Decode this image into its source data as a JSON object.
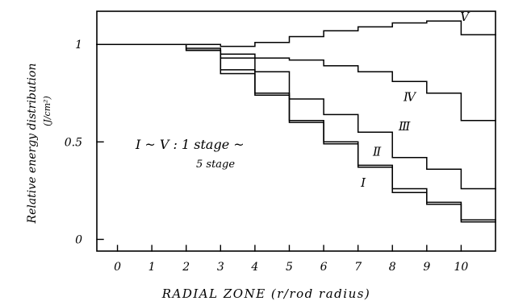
{
  "chart_data": {
    "type": "line",
    "step": true,
    "xlabel": "RADIAL ZONE (r/rod radius)",
    "ylabel": "Relative energy distribution",
    "ylabel_unit": "(J/cm²)",
    "x_ticks": [
      "0",
      "1",
      "2",
      "3",
      "4",
      "5",
      "6",
      "7",
      "8",
      "9",
      "10"
    ],
    "y_ticks": [
      {
        "value": 0,
        "label": "0"
      },
      {
        "value": 0.5,
        "label": "0.5"
      },
      {
        "value": 1,
        "label": "1"
      }
    ],
    "xlim": [
      -0.6,
      11
    ],
    "ylim": [
      -0.06,
      1.17
    ],
    "annotation": {
      "line1": "I ~ V : 1 stage ~",
      "line2": "5 stage"
    },
    "series": [
      {
        "name": "I",
        "x": [
          -0.6,
          2,
          3,
          4,
          5,
          6,
          7,
          8,
          9,
          10
        ],
        "y": [
          1.0,
          0.97,
          0.85,
          0.74,
          0.6,
          0.49,
          0.37,
          0.24,
          0.18,
          0.09
        ]
      },
      {
        "name": "II",
        "x": [
          -0.6,
          2,
          3,
          4,
          5,
          6,
          7,
          8,
          9,
          10
        ],
        "y": [
          1.0,
          0.97,
          0.87,
          0.75,
          0.61,
          0.5,
          0.38,
          0.26,
          0.19,
          0.1
        ]
      },
      {
        "name": "III",
        "x": [
          -0.6,
          2,
          3,
          4,
          5,
          6,
          7,
          8,
          9,
          10
        ],
        "y": [
          1.0,
          0.97,
          0.93,
          0.86,
          0.72,
          0.64,
          0.55,
          0.42,
          0.36,
          0.26
        ]
      },
      {
        "name": "IV",
        "x": [
          -0.6,
          2,
          3,
          4,
          5,
          6,
          7,
          8,
          9,
          10
        ],
        "y": [
          1.0,
          0.98,
          0.95,
          0.93,
          0.92,
          0.89,
          0.86,
          0.81,
          0.75,
          0.61
        ]
      },
      {
        "name": "V",
        "x": [
          -0.6,
          3,
          4,
          5,
          6,
          7,
          8,
          9,
          10
        ],
        "y": [
          1.0,
          0.99,
          1.01,
          1.04,
          1.07,
          1.09,
          1.11,
          1.12,
          1.05
        ]
      }
    ],
    "series_labels": [
      "Ⅰ",
      "Ⅱ",
      "Ⅲ",
      "Ⅳ",
      "Ⅴ"
    ]
  }
}
